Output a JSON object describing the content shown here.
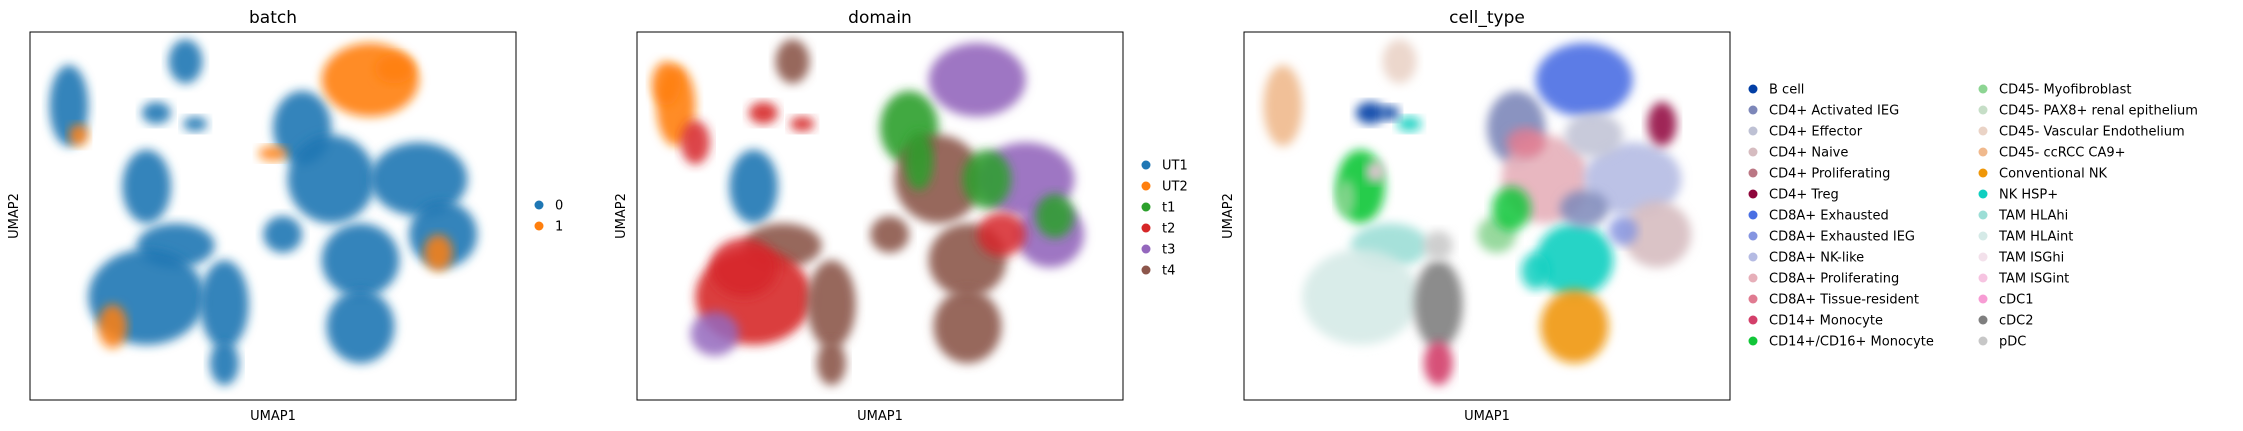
{
  "figure": {
    "type": "umap-scatter-panels",
    "xlabel": "UMAP1",
    "ylabel": "UMAP2"
  },
  "chart_data": [
    {
      "type": "scatter",
      "title": "batch",
      "xlabel": "UMAP1",
      "ylabel": "UMAP2",
      "legend_position": "right",
      "legend_columns": 1,
      "categories": [
        {
          "name": "0",
          "color": "#1f77b4"
        },
        {
          "name": "1",
          "color": "#ff7f0e"
        }
      ]
    },
    {
      "type": "scatter",
      "title": "domain",
      "xlabel": "UMAP1",
      "ylabel": "UMAP2",
      "legend_position": "right",
      "legend_columns": 1,
      "categories": [
        {
          "name": "UT1",
          "color": "#1f77b4"
        },
        {
          "name": "UT2",
          "color": "#ff7f0e"
        },
        {
          "name": "t1",
          "color": "#2ca02c"
        },
        {
          "name": "t2",
          "color": "#d62728"
        },
        {
          "name": "t3",
          "color": "#9467bd"
        },
        {
          "name": "t4",
          "color": "#8c564b"
        }
      ]
    },
    {
      "type": "scatter",
      "title": "cell_type",
      "xlabel": "UMAP1",
      "ylabel": "UMAP2",
      "legend_position": "right",
      "legend_columns": 2,
      "categories": [
        {
          "name": "B cell",
          "color": "#023fa5"
        },
        {
          "name": "CD4+ Activated IEG",
          "color": "#7d87b9"
        },
        {
          "name": "CD4+ Effector",
          "color": "#bec1d4"
        },
        {
          "name": "CD4+ Naive",
          "color": "#d6bcc0"
        },
        {
          "name": "CD4+ Proliferating",
          "color": "#bb7784"
        },
        {
          "name": "CD4+ Treg",
          "color": "#8e063b"
        },
        {
          "name": "CD8A+ Exhausted",
          "color": "#4a6fe3"
        },
        {
          "name": "CD8A+ Exhausted IEG",
          "color": "#8595e1"
        },
        {
          "name": "CD8A+ NK-like",
          "color": "#b5bbe3"
        },
        {
          "name": "CD8A+ Proliferating",
          "color": "#e6afb9"
        },
        {
          "name": "CD8A+ Tissue-resident",
          "color": "#e07b91"
        },
        {
          "name": "CD14+ Monocyte",
          "color": "#d33f6a"
        },
        {
          "name": "CD14+/CD16+ Monocyte",
          "color": "#11c638"
        },
        {
          "name": "CD45- Myofibroblast",
          "color": "#8dd593"
        },
        {
          "name": "CD45- PAX8+ renal epithelium",
          "color": "#c6dec7"
        },
        {
          "name": "CD45- Vascular Endothelium",
          "color": "#ead3c6"
        },
        {
          "name": "CD45- ccRCC CA9+",
          "color": "#f0b98d"
        },
        {
          "name": "Conventional NK",
          "color": "#ef9708"
        },
        {
          "name": "NK HSP+",
          "color": "#0fcfc0"
        },
        {
          "name": "TAM HLAhi",
          "color": "#9cded6"
        },
        {
          "name": "TAM HLAint",
          "color": "#d5eae7"
        },
        {
          "name": "TAM ISGhi",
          "color": "#f3e1eb"
        },
        {
          "name": "TAM ISGint",
          "color": "#f6c4e1"
        },
        {
          "name": "cDC1",
          "color": "#f79cd4"
        },
        {
          "name": "cDC2",
          "color": "#7f7f7f"
        },
        {
          "name": "pDC",
          "color": "#c7c7c7"
        }
      ]
    }
  ]
}
